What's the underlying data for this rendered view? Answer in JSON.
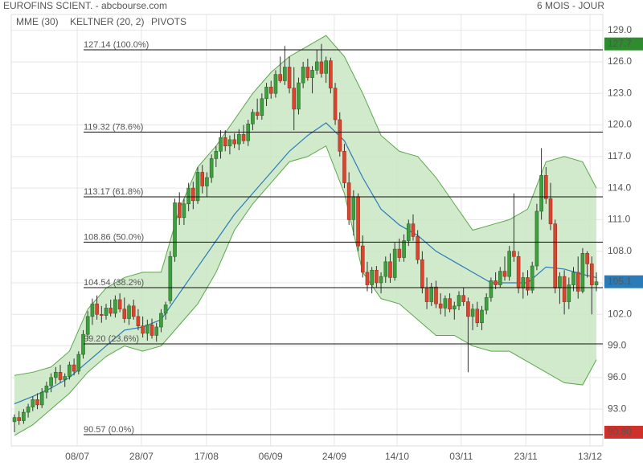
{
  "chart_data": {
    "type": "candlestick",
    "title": "EUROFINS SCIENT. - abcbourse.com",
    "period": "6 MOIS - JOUR",
    "xlim": [
      -0.7,
      128.4
    ],
    "xticks": [
      {
        "value": 13.7,
        "label": "08/07"
      },
      {
        "value": 27.7,
        "label": "28/07"
      },
      {
        "value": 41.9,
        "label": "17/08"
      },
      {
        "value": 55.9,
        "label": "06/09"
      },
      {
        "value": 69.8,
        "label": "24/09"
      },
      {
        "value": 83.5,
        "label": "14/10"
      },
      {
        "value": 97.5,
        "label": "03/11"
      },
      {
        "value": 111.6,
        "label": "23/11"
      },
      {
        "value": 125.6,
        "label": "13/12"
      }
    ],
    "ylim": [
      89.5,
      130.5
    ],
    "yticks": [
      {
        "value": 129,
        "label": "129.0"
      },
      {
        "value": 126,
        "label": "126.0"
      },
      {
        "value": 123,
        "label": "123.0"
      },
      {
        "value": 120,
        "label": "120.0"
      },
      {
        "value": 117,
        "label": "117.0"
      },
      {
        "value": 114,
        "label": "114.0"
      },
      {
        "value": 111,
        "label": "111.0"
      },
      {
        "value": 108,
        "label": "108.0"
      },
      {
        "value": 105,
        "label": "105.0"
      },
      {
        "value": 102,
        "label": "102.0"
      },
      {
        "value": 99,
        "label": "99.0"
      },
      {
        "value": 96,
        "label": "96.0"
      },
      {
        "value": 93,
        "label": "93.0"
      }
    ],
    "grid": true,
    "candles": {
      "up_color": "#3f9e3f",
      "down_color": "#d9452f",
      "open": [
        91.8,
        92.2,
        91.9,
        92.7,
        93.2,
        93.9,
        93.4,
        94.6,
        95.2,
        96.0,
        96.5,
        95.8,
        96.1,
        97.2,
        96.6,
        98.2,
        100.1,
        101.8,
        103.0,
        102.0,
        101.9,
        102.6,
        102.1,
        103.4,
        102.5,
        101.6,
        102.8,
        101.8,
        100.9,
        100.2,
        101.0,
        100.0,
        100.8,
        102.1,
        103.3,
        107.5,
        112.6,
        111.2,
        112.5,
        114.0,
        112.8,
        115.5,
        114.2,
        115.0,
        116.8,
        117.5,
        118.8,
        118.0,
        118.6,
        118.2,
        119.1,
        118.5,
        120.1,
        121.2,
        120.9,
        122.5,
        123.6,
        123.0,
        124.8,
        124.2,
        125.5,
        123.5,
        121.5,
        124.0,
        125.5,
        124.5,
        125.2,
        126.0,
        124.9,
        126.1,
        123.5,
        120.5,
        117.5,
        114.5,
        111.0,
        113.2,
        108.5,
        106.0,
        104.8,
        106.2,
        105.0,
        105.6,
        107.0,
        105.5,
        108.2,
        107.4,
        109.0,
        110.6,
        109.4,
        107.2,
        104.5,
        103.2,
        104.6,
        103.0,
        102.6,
        103.5,
        102.5,
        102.8,
        103.8,
        103.2,
        101.8,
        102.5,
        101.2,
        102.4,
        103.6,
        105.2,
        104.8,
        106.1,
        105.6,
        108.0,
        107.5,
        104.5,
        105.5,
        104.3,
        106.6,
        111.8,
        115.2,
        113.0,
        110.6,
        104.5,
        105.6,
        103.2,
        104.8,
        106.0,
        104.2,
        107.8,
        106.8,
        104.8
      ],
      "high": [
        92.5,
        92.8,
        93.0,
        93.5,
        94.2,
        94.5,
        95.0,
        95.6,
        96.4,
        97.0,
        97.2,
        96.4,
        97.5,
        97.8,
        98.5,
        100.5,
        102.3,
        103.5,
        103.8,
        102.8,
        103.0,
        103.4,
        103.8,
        104.0,
        103.6,
        103.0,
        103.4,
        102.5,
        101.8,
        101.5,
        101.6,
        101.2,
        102.5,
        103.2,
        108.0,
        113.0,
        113.6,
        113.0,
        114.5,
        114.6,
        116.0,
        116.2,
        115.5,
        117.2,
        118.0,
        119.5,
        119.5,
        119.0,
        119.2,
        119.6,
        120.0,
        120.5,
        121.5,
        122.5,
        123.0,
        124.0,
        124.2,
        125.2,
        126.5,
        127.5,
        126.5,
        125.5,
        124.5,
        126.0,
        126.3,
        125.6,
        127.1,
        127.7,
        126.5,
        126.4,
        124.0,
        121.2,
        118.2,
        115.5,
        113.8,
        113.5,
        109.5,
        107.0,
        106.5,
        106.6,
        106.0,
        107.5,
        107.8,
        108.8,
        109.2,
        109.6,
        111.0,
        111.5,
        110.0,
        108.0,
        105.5,
        105.0,
        105.2,
        104.0,
        103.8,
        104.0,
        103.2,
        104.2,
        104.5,
        103.6,
        103.0,
        103.2,
        102.8,
        104.0,
        105.5,
        106.0,
        106.5,
        107.5,
        108.5,
        113.5,
        108.0,
        106.0,
        106.2,
        107.0,
        112.5,
        117.8,
        116.0,
        114.5,
        111.0,
        106.0,
        106.2,
        105.5,
        106.5,
        107.5,
        108.3,
        108.0,
        107.5,
        106.0
      ],
      "low": [
        90.8,
        91.5,
        91.6,
        92.2,
        92.8,
        93.0,
        93.1,
        94.0,
        94.6,
        95.4,
        95.5,
        95.1,
        95.8,
        96.2,
        96.3,
        97.8,
        99.5,
        101.0,
        101.5,
        101.2,
        101.5,
        101.8,
        101.7,
        102.2,
        101.2,
        101.0,
        101.5,
        100.5,
        99.8,
        99.5,
        99.7,
        99.4,
        100.3,
        101.5,
        103.0,
        107.0,
        110.5,
        110.5,
        111.8,
        112.0,
        112.5,
        113.5,
        113.2,
        114.5,
        116.0,
        116.8,
        117.5,
        117.2,
        117.8,
        117.6,
        118.2,
        118.0,
        119.5,
        120.5,
        120.5,
        121.8,
        122.5,
        122.6,
        124.0,
        123.8,
        123.0,
        119.5,
        121.0,
        123.5,
        124.2,
        123.0,
        124.8,
        124.5,
        124.0,
        123.0,
        120.0,
        117.0,
        114.0,
        110.5,
        109.5,
        108.0,
        105.5,
        104.2,
        104.0,
        104.5,
        104.0,
        105.0,
        105.0,
        105.2,
        107.0,
        107.0,
        108.5,
        109.0,
        106.8,
        104.0,
        102.5,
        102.8,
        102.6,
        102.0,
        101.8,
        102.2,
        101.5,
        102.4,
        102.8,
        96.5,
        100.5,
        100.8,
        100.5,
        102.0,
        103.2,
        104.4,
        104.5,
        105.2,
        105.2,
        107.0,
        104.0,
        103.5,
        103.8,
        104.0,
        106.2,
        111.0,
        112.5,
        110.0,
        104.0,
        103.0,
        102.0,
        102.5,
        104.2,
        103.5,
        104.0,
        105.5,
        102.0,
        104.2
      ],
      "close": [
        92.2,
        91.9,
        92.7,
        93.2,
        93.9,
        93.4,
        94.6,
        95.2,
        96.0,
        96.5,
        95.8,
        96.1,
        97.2,
        96.6,
        98.2,
        100.1,
        101.8,
        103.0,
        102.0,
        101.9,
        102.6,
        102.1,
        103.4,
        102.5,
        101.6,
        102.8,
        101.8,
        100.9,
        100.2,
        101.0,
        100.0,
        100.8,
        102.1,
        102.9,
        107.5,
        112.6,
        111.2,
        112.5,
        114.0,
        112.8,
        115.5,
        114.2,
        115.0,
        116.8,
        117.5,
        118.8,
        118.0,
        118.6,
        118.2,
        119.1,
        118.5,
        120.1,
        121.2,
        120.9,
        122.5,
        123.6,
        123.0,
        124.8,
        124.2,
        125.5,
        123.5,
        121.5,
        124.0,
        125.5,
        124.5,
        125.2,
        126.0,
        124.9,
        126.1,
        123.5,
        120.5,
        117.5,
        114.5,
        111.0,
        113.2,
        108.5,
        106.0,
        104.8,
        106.2,
        105.0,
        105.6,
        107.0,
        105.5,
        108.2,
        107.4,
        109.0,
        110.6,
        109.4,
        107.2,
        104.5,
        103.2,
        104.6,
        103.0,
        102.6,
        103.5,
        102.5,
        102.8,
        103.8,
        103.2,
        101.8,
        102.5,
        101.2,
        102.4,
        103.6,
        105.2,
        104.8,
        106.1,
        105.6,
        108.0,
        107.5,
        104.5,
        105.5,
        104.3,
        106.6,
        111.8,
        115.2,
        113.0,
        110.6,
        104.5,
        105.6,
        103.2,
        104.8,
        106.0,
        104.2,
        107.8,
        106.8,
        104.8,
        105.1
      ]
    },
    "mme": {
      "name": "MME (30)",
      "color": "#2b7bb9",
      "x": [
        0,
        4,
        8,
        12,
        16,
        20,
        24,
        28,
        32,
        36,
        40,
        44,
        48,
        52,
        56,
        60,
        64,
        68,
        72,
        76,
        80,
        84,
        88,
        92,
        96,
        100,
        104,
        108,
        112,
        116,
        120,
        124,
        127
      ],
      "values": [
        93.5,
        94.2,
        95.0,
        96.0,
        97.5,
        99.0,
        100.5,
        100.8,
        101.5,
        104.0,
        106.5,
        109.0,
        111.5,
        113.5,
        115.5,
        117.5,
        119.0,
        120.2,
        118.5,
        115.0,
        112.0,
        110.5,
        109.5,
        108.0,
        107.0,
        106.0,
        105.0,
        105.0,
        105.0,
        106.5,
        106.3,
        105.8,
        105.5
      ]
    },
    "keltner": {
      "name": "KELTNER (20, 2)",
      "color": "#5aa84a",
      "fill": "#c9e6c2",
      "x": [
        0,
        4,
        8,
        12,
        16,
        20,
        24,
        28,
        32,
        36,
        40,
        44,
        48,
        52,
        56,
        60,
        64,
        68,
        72,
        76,
        80,
        84,
        88,
        92,
        96,
        100,
        104,
        108,
        112,
        116,
        120,
        124,
        127
      ],
      "upper": [
        96.2,
        96.5,
        97.0,
        98.5,
        102.5,
        104.5,
        105.5,
        106.0,
        106.0,
        112.0,
        116.0,
        118.0,
        120.5,
        123.0,
        125.0,
        126.5,
        127.5,
        128.5,
        126.5,
        123.0,
        119.0,
        117.5,
        117.0,
        115.0,
        112.5,
        110.0,
        110.5,
        111.0,
        112.0,
        116.5,
        117.0,
        116.5,
        114.0
      ],
      "lower": [
        90.5,
        91.5,
        93.0,
        94.5,
        96.5,
        98.0,
        99.0,
        98.5,
        99.0,
        101.0,
        103.0,
        106.0,
        110.0,
        112.5,
        114.5,
        116.5,
        117.0,
        118.0,
        113.5,
        106.0,
        103.5,
        103.0,
        101.5,
        100.0,
        100.0,
        99.0,
        98.5,
        98.5,
        97.5,
        96.5,
        95.5,
        95.3,
        97.7
      ]
    },
    "pivots": {
      "name": "PIVOTS",
      "color": "#666666",
      "levels": [
        {
          "value": 127.14,
          "label": "127.14 (100.0%)"
        },
        {
          "value": 119.32,
          "label": "119.32 (78.6%)"
        },
        {
          "value": 113.17,
          "label": "113.17 (61.8%)"
        },
        {
          "value": 108.86,
          "label": "108.86 (50.0%)"
        },
        {
          "value": 104.54,
          "label": "104.54 (38.2%)"
        },
        {
          "value": 99.2,
          "label": "99.20 (23.6%)"
        },
        {
          "value": 90.57,
          "label": "90.57 (0.0%)"
        }
      ]
    },
    "price_markers": [
      {
        "value": 127.7,
        "color": "#2e8b2e"
      },
      {
        "value": 105.1,
        "color": "#2b7bb9"
      },
      {
        "value": 90.8,
        "label": "90.80",
        "color": "#d0302a"
      }
    ]
  }
}
